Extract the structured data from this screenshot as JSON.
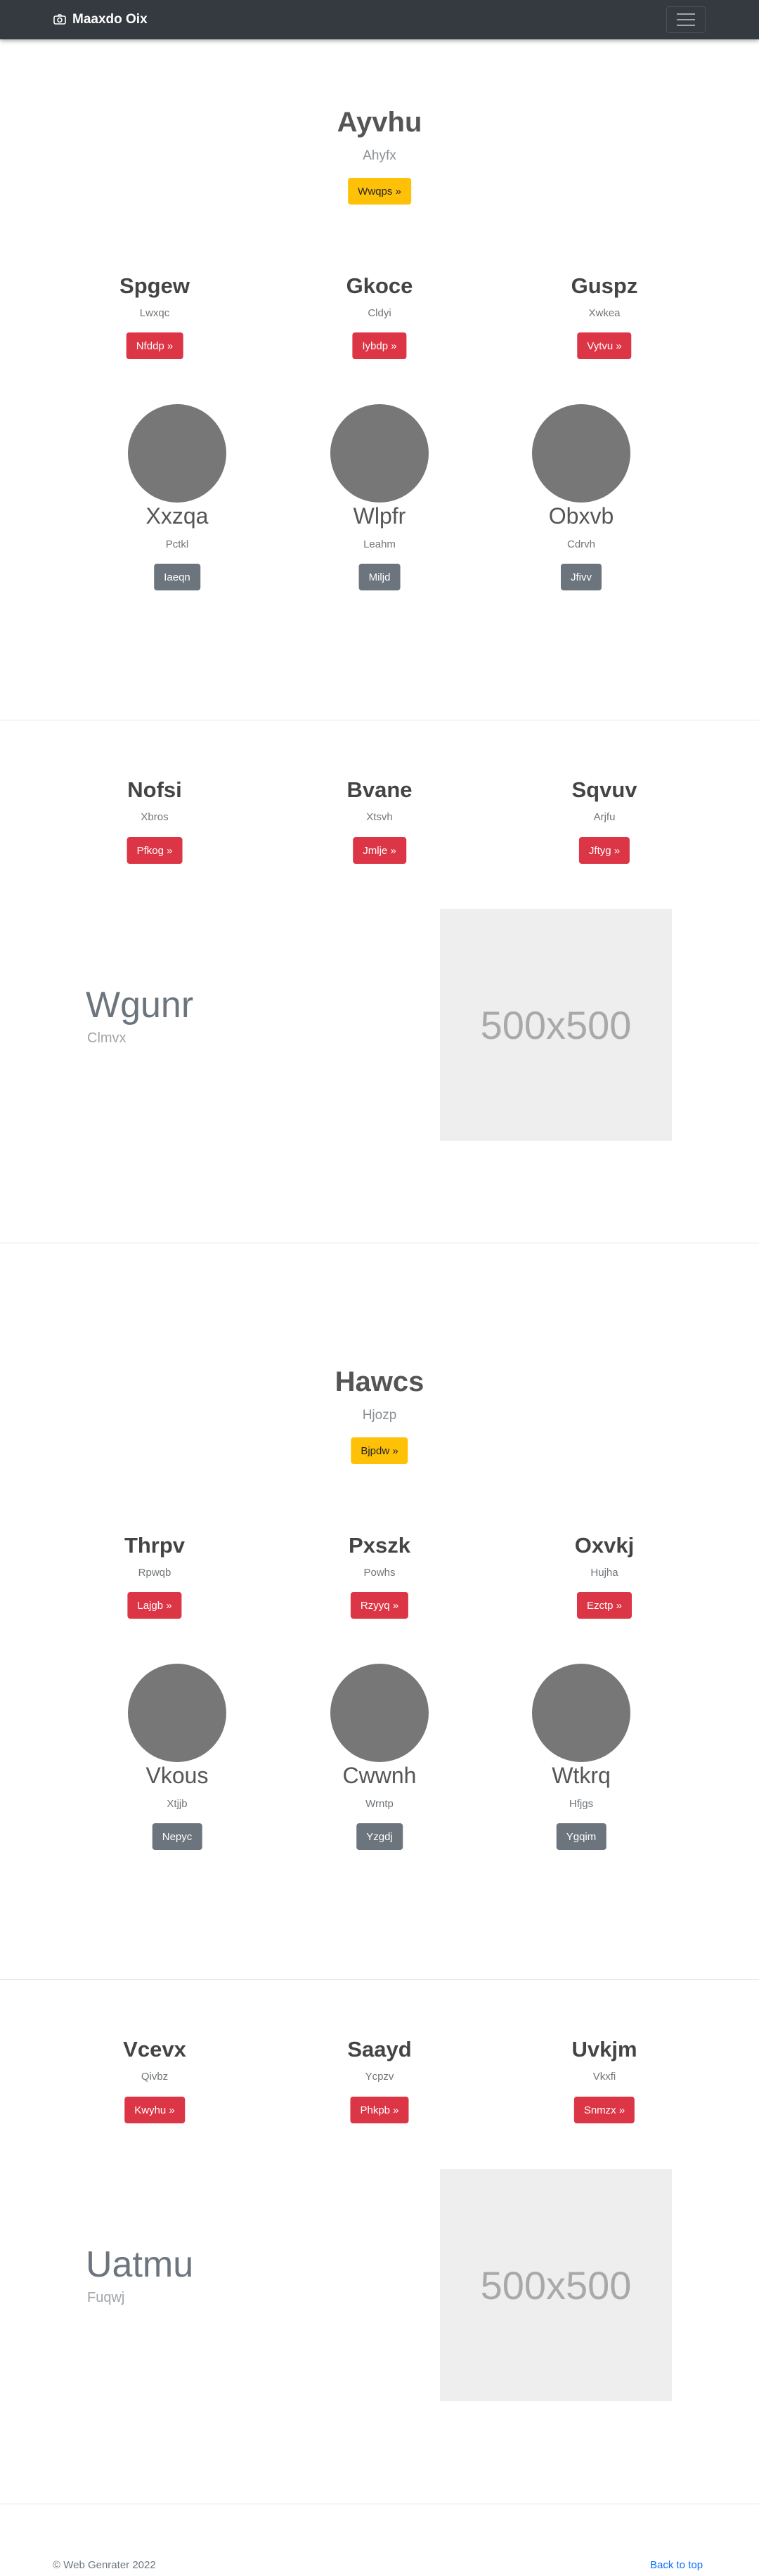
{
  "navbar": {
    "brand": "Maaxdo Oix",
    "brand_icon": "camera-icon",
    "toggler_icon": "hamburger-menu-icon"
  },
  "hero1": {
    "title": "Ayvhu",
    "subtitle": "Ahyfx",
    "button": "Wwqps »"
  },
  "row1": [
    {
      "title": "Spgew",
      "subtitle": "Lwxqc",
      "button": "Nfddp »"
    },
    {
      "title": "Gkoce",
      "subtitle": "Cldyi",
      "button": "Iybdp »"
    },
    {
      "title": "Guspz",
      "subtitle": "Xwkea",
      "button": "Vytvu »"
    }
  ],
  "circles1": [
    {
      "title": "Xxzqa",
      "subtitle": "Pctkl",
      "button": "Iaeqn"
    },
    {
      "title": "Wlpfr",
      "subtitle": "Leahm",
      "button": "Miljd"
    },
    {
      "title": "Obxvb",
      "subtitle": "Cdrvh",
      "button": "Jfivv"
    }
  ],
  "row2": [
    {
      "title": "Nofsi",
      "subtitle": "Xbros",
      "button": "Pfkog »"
    },
    {
      "title": "Bvane",
      "subtitle": "Xtsvh",
      "button": "Jmlje »"
    },
    {
      "title": "Sqvuv",
      "subtitle": "Arjfu",
      "button": "Jftyg »"
    }
  ],
  "feature1": {
    "title": "Wgunr",
    "subtitle": "Clmvx",
    "image_text": "500x500"
  },
  "hero2": {
    "title": "Hawcs",
    "subtitle": "Hjozp",
    "button": "Bjpdw »"
  },
  "row3": [
    {
      "title": "Thrpv",
      "subtitle": "Rpwqb",
      "button": "Lajgb »"
    },
    {
      "title": "Pxszk",
      "subtitle": "Powhs",
      "button": "Rzyyq »"
    },
    {
      "title": "Oxvkj",
      "subtitle": "Hujha",
      "button": "Ezctp »"
    }
  ],
  "circles2": [
    {
      "title": "Vkous",
      "subtitle": "Xtjjb",
      "button": "Nepyc"
    },
    {
      "title": "Cwwnh",
      "subtitle": "Wrntp",
      "button": "Yzgdj"
    },
    {
      "title": "Wtkrq",
      "subtitle": "Hfjgs",
      "button": "Ygqim"
    }
  ],
  "row4": [
    {
      "title": "Vcevx",
      "subtitle": "Qivbz",
      "button": "Kwyhu »"
    },
    {
      "title": "Saayd",
      "subtitle": "Ycpzv",
      "button": "Phkpb »"
    },
    {
      "title": "Uvkjm",
      "subtitle": "Vkxfi",
      "button": "Snmzx »"
    }
  ],
  "feature2": {
    "title": "Uatmu",
    "subtitle": "Fuqwj",
    "image_text": "500x500"
  },
  "footer": {
    "copyright": "© Web Genrater 2022",
    "back_to_top": "Back to top"
  },
  "colors": {
    "navbar": "#343a40",
    "warning": "#ffc107",
    "danger": "#dc3545",
    "secondary": "#6c757d",
    "circle_placeholder": "#777777",
    "image_placeholder": "#eeeeee",
    "link": "#0d6efd"
  }
}
